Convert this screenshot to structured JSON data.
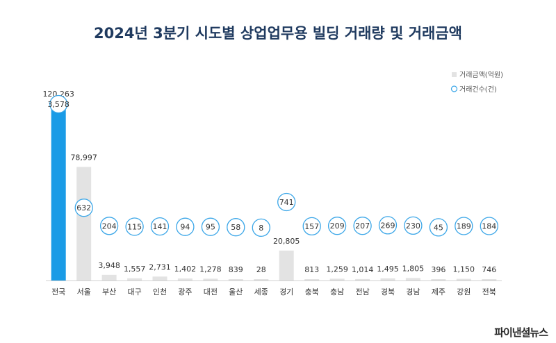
{
  "colors": {
    "highlight_bar": "#1a9be6",
    "bar": "#e3e3e3",
    "circle_stroke": "#3aa6e8",
    "title": "#1f3a5f"
  },
  "watermark": "파이낸셜뉴스",
  "chart_data": {
    "type": "bar",
    "title": "2024년 3분기 시도별 상업업무용 빌딩 거래량 및 거래금액",
    "categories": [
      "전국",
      "서울",
      "부산",
      "대구",
      "인천",
      "광주",
      "대전",
      "울산",
      "세종",
      "경기",
      "충북",
      "충남",
      "전남",
      "경북",
      "경남",
      "제주",
      "강원",
      "전북"
    ],
    "series": [
      {
        "name": "거래금액(억원)",
        "type": "bar",
        "values": [
          120263,
          78997,
          3948,
          1557,
          2731,
          1402,
          1278,
          839,
          28,
          20805,
          813,
          1259,
          1014,
          1495,
          1805,
          396,
          1150,
          746
        ],
        "labels": [
          "120,263",
          "78,997",
          "3,948",
          "1,557",
          "2,731",
          "1,402",
          "1,278",
          "839",
          "28",
          "20,805",
          "813",
          "1,259",
          "1,014",
          "1,495",
          "1,805",
          "396",
          "1,150",
          "746"
        ]
      },
      {
        "name": "거래건수(건)",
        "type": "scatter",
        "values": [
          3578,
          632,
          204,
          115,
          141,
          94,
          95,
          58,
          8,
          741,
          157,
          209,
          207,
          269,
          230,
          45,
          189,
          184
        ],
        "labels": [
          "3,578",
          "632",
          "204",
          "115",
          "141",
          "94",
          "95",
          "58",
          "8",
          "741",
          "157",
          "209",
          "207",
          "269",
          "230",
          "45",
          "189",
          "184"
        ]
      }
    ],
    "highlight_category": "전국",
    "legend": "top-right",
    "grid": false
  }
}
